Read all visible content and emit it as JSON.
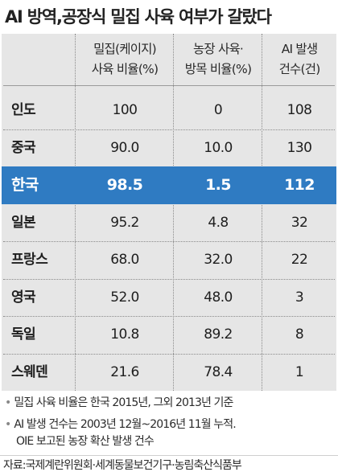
{
  "title": "AI 방역,공장식 밀집 사육 여부가 갈랐다",
  "header": {
    "col1_line1": "밀집(케이지)",
    "col1_line2": "사육 비율(%)",
    "col2_line1": "농장 사육·",
    "col2_line2": "방목 비율(%)",
    "col3_line1": "AI 발생",
    "col3_line2": "건수(건)"
  },
  "highlight_color": "#2f7bc2",
  "chart_data": {
    "type": "table",
    "title": "AI 방역,공장식 밀집 사육 여부가 갈랐다",
    "columns": [
      "밀집(케이지) 사육 비율(%)",
      "농장 사육·방목 비율(%)",
      "AI 발생 건수(건)"
    ],
    "rows": [
      {
        "country": "인도",
        "cage": "100",
        "free": "0",
        "cases": "108"
      },
      {
        "country": "중국",
        "cage": "90.0",
        "free": "10.0",
        "cases": "130"
      },
      {
        "country": "한국",
        "cage": "98.5",
        "free": "1.5",
        "cases": "112",
        "highlight": true
      },
      {
        "country": "일본",
        "cage": "95.2",
        "free": "4.8",
        "cases": "32"
      },
      {
        "country": "프랑스",
        "cage": "68.0",
        "free": "32.0",
        "cases": "22"
      },
      {
        "country": "영국",
        "cage": "52.0",
        "free": "48.0",
        "cases": "3"
      },
      {
        "country": "독일",
        "cage": "10.8",
        "free": "89.2",
        "cases": "8"
      },
      {
        "country": "스웨덴",
        "cage": "21.6",
        "free": "78.4",
        "cases": "1"
      }
    ]
  },
  "notes": {
    "bullet": "•",
    "note1": "밀집 사육 비율은 한국 2015년, 그외 2013년 기준",
    "note2_line1": "AI 발생 건수는 2003년 12월~2016년 11월 누적.",
    "note2_line2": "OIE 보고된 농장 확산 발생 건수"
  },
  "source": "자료:국제계란위원회·세계동물보건기구·농림축산식품부"
}
